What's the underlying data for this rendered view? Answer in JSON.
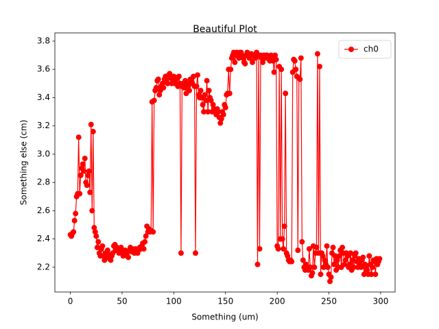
{
  "chart_data": {
    "type": "line",
    "title": "Beautiful Plot",
    "x_label": "Something (um)",
    "y_label": "Something else (cm)",
    "x": [
      0,
      1,
      2,
      3,
      4,
      5,
      6,
      7,
      8,
      9,
      10,
      11,
      12,
      13,
      14,
      15,
      16,
      17,
      18,
      19,
      20,
      21,
      22,
      23,
      24,
      25,
      26,
      27,
      28,
      29,
      30,
      31,
      32,
      33,
      34,
      35,
      36,
      37,
      38,
      39,
      40,
      41,
      42,
      43,
      44,
      45,
      46,
      47,
      48,
      49,
      50,
      51,
      52,
      53,
      54,
      55,
      56,
      57,
      58,
      59,
      60,
      61,
      62,
      63,
      64,
      65,
      66,
      67,
      68,
      69,
      70,
      71,
      72,
      73,
      74,
      75,
      76,
      77,
      78,
      79,
      80,
      81,
      82,
      83,
      84,
      85,
      86,
      87,
      88,
      89,
      90,
      91,
      92,
      93,
      94,
      95,
      96,
      97,
      98,
      99,
      100,
      101,
      102,
      103,
      104,
      105,
      106,
      107,
      108,
      109,
      110,
      111,
      112,
      113,
      114,
      115,
      116,
      117,
      118,
      119,
      120,
      121,
      122,
      123,
      124,
      125,
      126,
      127,
      128,
      129,
      130,
      131,
      132,
      133,
      134,
      135,
      136,
      137,
      138,
      139,
      140,
      141,
      142,
      143,
      144,
      145,
      146,
      147,
      148,
      149,
      150,
      151,
      152,
      153,
      154,
      155,
      156,
      157,
      158,
      159,
      160,
      161,
      162,
      163,
      164,
      165,
      166,
      167,
      168,
      169,
      170,
      171,
      172,
      173,
      174,
      175,
      176,
      177,
      178,
      179,
      180,
      181,
      182,
      183,
      184,
      185,
      186,
      187,
      188,
      189,
      190,
      191,
      192,
      193,
      194,
      195,
      196,
      197,
      198,
      199,
      200,
      201,
      202,
      203,
      204,
      205,
      206,
      207,
      208,
      209,
      210,
      211,
      212,
      213,
      214,
      215,
      216,
      217,
      218,
      219,
      220,
      221,
      222,
      223,
      224,
      225,
      226,
      227,
      228,
      229,
      230,
      231,
      232,
      233,
      234,
      235,
      236,
      237,
      238,
      239,
      240,
      241,
      242,
      243,
      244,
      245,
      246,
      247,
      248,
      249,
      250,
      251,
      252,
      253,
      254,
      255,
      256,
      257,
      258,
      259,
      260,
      261,
      262,
      263,
      264,
      265,
      266,
      267,
      268,
      269,
      270,
      271,
      272,
      273,
      274,
      275,
      276,
      277,
      278,
      279,
      280,
      281,
      282,
      283,
      284,
      285,
      286,
      287,
      288,
      289,
      290,
      291,
      292,
      293,
      294,
      295,
      296,
      297,
      298,
      299
    ],
    "series": [
      {
        "name": "ch0",
        "color": "#ff0000",
        "values": [
          2.43,
          2.42,
          2.44,
          2.45,
          2.53,
          2.58,
          2.7,
          2.72,
          3.12,
          2.72,
          2.85,
          2.9,
          2.93,
          2.88,
          2.97,
          2.8,
          2.78,
          2.85,
          2.88,
          2.73,
          3.21,
          2.6,
          3.16,
          2.48,
          2.45,
          2.42,
          2.34,
          2.38,
          2.3,
          2.28,
          2.33,
          2.35,
          2.28,
          2.25,
          2.3,
          2.27,
          2.32,
          2.29,
          2.26,
          2.25,
          2.28,
          2.3,
          2.35,
          2.36,
          2.32,
          2.34,
          2.33,
          2.3,
          2.33,
          2.34,
          2.3,
          2.28,
          2.3,
          2.32,
          2.3,
          2.28,
          2.27,
          2.32,
          2.34,
          2.31,
          2.33,
          2.32,
          2.3,
          2.33,
          2.31,
          2.3,
          2.32,
          2.34,
          2.33,
          2.35,
          2.37,
          2.33,
          2.38,
          2.42,
          2.49,
          2.45,
          2.47,
          2.45,
          2.46,
          3.37,
          2.45,
          3.38,
          3.45,
          3.47,
          3.52,
          3.53,
          3.42,
          3.45,
          3.48,
          3.5,
          3.47,
          3.53,
          3.55,
          3.52,
          3.5,
          3.56,
          3.57,
          3.54,
          3.5,
          3.52,
          3.55,
          3.5,
          3.53,
          3.54,
          3.48,
          3.55,
          3.5,
          2.3,
          3.48,
          3.5,
          3.47,
          3.52,
          3.43,
          3.5,
          3.48,
          3.45,
          3.53,
          3.52,
          3.5,
          3.55,
          3.48,
          2.3,
          3.48,
          3.56,
          3.42,
          3.4,
          3.45,
          3.4,
          3.35,
          3.3,
          3.42,
          3.38,
          3.52,
          3.3,
          3.45,
          3.4,
          3.38,
          3.3,
          3.35,
          3.32,
          3.3,
          3.28,
          3.32,
          3.3,
          3.26,
          3.22,
          3.25,
          3.3,
          3.28,
          3.35,
          3.33,
          3.42,
          3.43,
          3.6,
          3.43,
          3.6,
          3.68,
          3.7,
          3.72,
          3.65,
          3.7,
          3.72,
          3.7,
          3.68,
          3.72,
          3.72,
          3.7,
          3.68,
          3.65,
          3.64,
          3.7,
          3.72,
          3.7,
          3.68,
          3.7,
          3.71,
          3.65,
          3.7,
          3.7,
          3.68,
          3.72,
          2.22,
          3.7,
          2.33,
          3.7,
          3.68,
          3.65,
          3.7,
          3.68,
          3.7,
          3.7,
          3.69,
          3.67,
          3.66,
          3.7,
          3.68,
          3.66,
          3.58,
          3.7,
          3.67,
          2.35,
          2.33,
          3.62,
          2.4,
          3.6,
          2.4,
          2.33,
          2.49,
          3.43,
          2.3,
          2.28,
          2.25,
          2.24,
          2.25,
          2.24,
          3.58,
          3.67,
          3.66,
          3.6,
          3.55,
          2.32,
          3.54,
          3.53,
          3.68,
          2.38,
          2.25,
          2.2,
          2.18,
          2.22,
          2.2,
          2.18,
          2.33,
          2.2,
          2.14,
          2.16,
          2.35,
          2.2,
          2.3,
          2.34,
          3.71,
          2.3,
          3.62,
          2.15,
          2.3,
          2.28,
          2.2,
          2.25,
          2.22,
          2.35,
          2.2,
          2.15,
          2.1,
          2.13,
          2.3,
          2.34,
          2.22,
          2.28,
          2.18,
          2.25,
          2.2,
          2.28,
          2.32,
          2.2,
          2.34,
          2.3,
          2.22,
          2.25,
          2.3,
          2.28,
          2.2,
          2.22,
          2.3,
          2.18,
          2.25,
          2.2,
          2.28,
          2.3,
          2.24,
          2.2,
          2.26,
          2.22,
          2.2,
          2.25,
          2.27,
          2.15,
          2.22,
          2.2,
          2.18,
          2.15,
          2.28,
          2.22,
          2.15,
          2.2,
          2.25,
          2.24,
          2.15,
          2.26,
          2.22,
          2.24,
          2.26
        ]
      }
    ],
    "xlim": [
      -15,
      314
    ],
    "xticks": [
      0,
      50,
      100,
      150,
      200,
      250,
      300
    ],
    "ylim": [
      2.025,
      3.858
    ],
    "yticks": [
      2.2,
      2.4,
      2.6,
      2.8,
      {
        "value": 3,
        "label": "3.0"
      },
      3.2,
      3.4,
      3.6,
      3.8
    ],
    "legend": "upper right",
    "marker": "circle",
    "grid": false
  }
}
